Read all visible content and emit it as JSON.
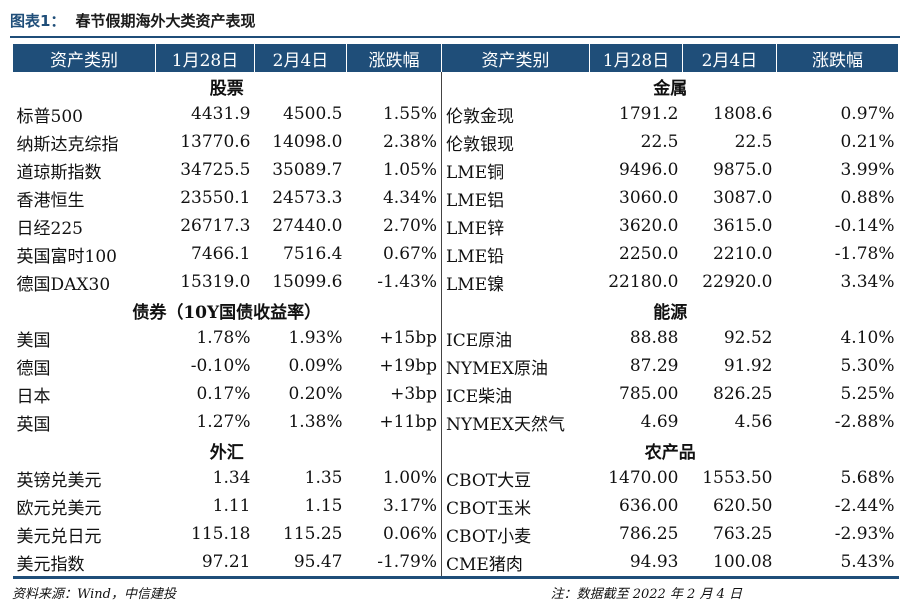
{
  "title": {
    "label": "图表1：",
    "text": "春节假期海外大类资产表现"
  },
  "headers": [
    "资产类别",
    "1月28日",
    "2月4日",
    "涨跌幅",
    "资产类别",
    "1月28日",
    "2月4日",
    "涨跌幅"
  ],
  "rows": [
    {
      "type": "section",
      "left": "股票",
      "right": "金属"
    },
    {
      "type": "data",
      "cells": [
        "标普500",
        "4431.9",
        "4500.5",
        "1.55%",
        "伦敦金现",
        "1791.2",
        "1808.6",
        "0.97%"
      ]
    },
    {
      "type": "data",
      "cells": [
        "纳斯达克综指",
        "13770.6",
        "14098.0",
        "2.38%",
        "伦敦银现",
        "22.5",
        "22.5",
        "0.21%"
      ]
    },
    {
      "type": "data",
      "cells": [
        "道琼斯指数",
        "34725.5",
        "35089.7",
        "1.05%",
        "LME铜",
        "9496.0",
        "9875.0",
        "3.99%"
      ]
    },
    {
      "type": "data",
      "cells": [
        "香港恒生",
        "23550.1",
        "24573.3",
        "4.34%",
        "LME铝",
        "3060.0",
        "3087.0",
        "0.88%"
      ]
    },
    {
      "type": "data",
      "cells": [
        "日经225",
        "26717.3",
        "27440.0",
        "2.70%",
        "LME锌",
        "3620.0",
        "3615.0",
        "-0.14%"
      ]
    },
    {
      "type": "data",
      "cells": [
        "英国富时100",
        "7466.1",
        "7516.4",
        "0.67%",
        "LME铅",
        "2250.0",
        "2210.0",
        "-1.78%"
      ]
    },
    {
      "type": "data",
      "cells": [
        "德国DAX30",
        "15319.0",
        "15099.6",
        "-1.43%",
        "LME镍",
        "22180.0",
        "22920.0",
        "3.34%"
      ]
    },
    {
      "type": "section",
      "left": "债券（10Y国债收益率）",
      "right": "能源"
    },
    {
      "type": "data",
      "cells": [
        "美国",
        "1.78%",
        "1.93%",
        "+15bp",
        "ICE原油",
        "88.88",
        "92.52",
        "4.10%"
      ]
    },
    {
      "type": "data",
      "cells": [
        "德国",
        "-0.10%",
        "0.09%",
        "+19bp",
        "NYMEX原油",
        "87.29",
        "91.92",
        "5.30%"
      ]
    },
    {
      "type": "data",
      "cells": [
        "日本",
        "0.17%",
        "0.20%",
        "+3bp",
        "ICE柴油",
        "785.00",
        "826.25",
        "5.25%"
      ]
    },
    {
      "type": "data",
      "cells": [
        "英国",
        "1.27%",
        "1.38%",
        "+11bp",
        "NYMEX天然气",
        "4.69",
        "4.56",
        "-2.88%"
      ]
    },
    {
      "type": "section",
      "left": "外汇",
      "right": "农产品"
    },
    {
      "type": "data",
      "cells": [
        "英镑兑美元",
        "1.34",
        "1.35",
        "1.00%",
        "CBOT大豆",
        "1470.00",
        "1553.50",
        "5.68%"
      ]
    },
    {
      "type": "data",
      "cells": [
        "欧元兑美元",
        "1.11",
        "1.15",
        "3.17%",
        "CBOT玉米",
        "636.00",
        "620.50",
        "-2.44%"
      ]
    },
    {
      "type": "data",
      "cells": [
        "美元兑日元",
        "115.18",
        "115.25",
        "0.06%",
        "CBOT小麦",
        "786.25",
        "763.25",
        "-2.93%"
      ]
    },
    {
      "type": "data",
      "cells": [
        "美元指数",
        "97.21",
        "95.47",
        "-1.79%",
        "CME猪肉",
        "94.93",
        "100.08",
        "5.43%"
      ]
    }
  ],
  "footer": {
    "source": "资料来源：Wind，中信建投",
    "note": "注：数据截至 2022 年 2 月 4 日"
  },
  "colors": {
    "header_bg": "#1f4e79",
    "header_text": "#ffffff",
    "rule": "#1f4e79"
  }
}
